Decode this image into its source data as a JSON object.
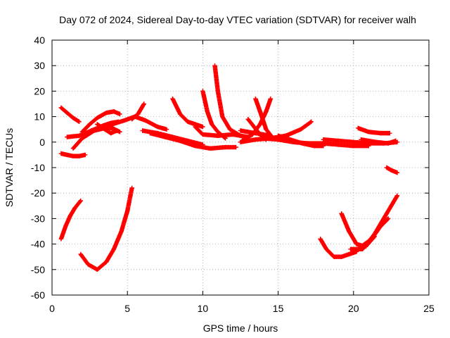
{
  "chart_data": {
    "type": "scatter",
    "title": "Day 072 of 2024, Sidereal Day-to-day VTEC variation (SDTVAR) for receiver walh",
    "xlabel": "GPS time / hours",
    "ylabel": "SDTVAR / TECUs",
    "xlim": [
      0,
      25
    ],
    "ylim": [
      -60,
      40
    ],
    "xticks": [
      0,
      5,
      10,
      15,
      20,
      25
    ],
    "yticks": [
      -60,
      -50,
      -40,
      -30,
      -20,
      -10,
      0,
      10,
      20,
      30,
      40
    ],
    "grid": true,
    "marker": "plus",
    "color": "#ff0000",
    "series": [
      {
        "x": [
          0.6,
          1.0,
          1.4,
          1.8
        ],
        "y": [
          13.5,
          11.5,
          9.5,
          8.0
        ]
      },
      {
        "x": [
          0.6,
          1.0,
          1.4,
          1.8,
          2.2
        ],
        "y": [
          -4.5,
          -5.0,
          -5.5,
          -5.5,
          -5.0
        ]
      },
      {
        "x": [
          0.6,
          0.9,
          1.2,
          1.5,
          1.9
        ],
        "y": [
          -38,
          -33,
          -29,
          -26,
          -23
        ]
      },
      {
        "x": [
          1.0,
          1.8,
          2.6,
          3.4,
          3.9,
          4.4
        ],
        "y": [
          2.0,
          2.5,
          4.5,
          6.5,
          7.5,
          8.0
        ]
      },
      {
        "x": [
          1.4,
          2.0,
          2.8,
          3.5,
          4.0,
          4.5
        ],
        "y": [
          -2.5,
          1.5,
          4.5,
          5.5,
          5.5,
          4.0
        ]
      },
      {
        "x": [
          2.0,
          2.5,
          3.0,
          3.6,
          4.1,
          4.5
        ],
        "y": [
          4.0,
          7.0,
          9.5,
          11.5,
          12.0,
          11.0
        ]
      },
      {
        "x": [
          3.0,
          3.5,
          3.9,
          4.3
        ],
        "y": [
          7.0,
          5.0,
          3.5,
          4.5
        ]
      },
      {
        "x": [
          1.9,
          2.4,
          3.0,
          3.6,
          4.1,
          4.6,
          5.0,
          5.3
        ],
        "y": [
          -44,
          -48,
          -50,
          -47,
          -42,
          -35,
          -27,
          -18
        ]
      },
      {
        "x": [
          3.2,
          4.0,
          4.8,
          5.5,
          6.2,
          7.0,
          7.6
        ],
        "y": [
          5.5,
          7.0,
          8.5,
          10.0,
          8.5,
          6.0,
          5.0
        ]
      },
      {
        "x": [
          5.3,
          5.7,
          6.1
        ],
        "y": [
          9.0,
          11.0,
          15.0
        ]
      },
      {
        "x": [
          6.0,
          7.0,
          8.0,
          9.0,
          10.0
        ],
        "y": [
          4.5,
          3.5,
          2.0,
          0.5,
          -1.0
        ]
      },
      {
        "x": [
          6.5,
          7.5,
          8.5,
          9.5,
          10.5,
          11.5,
          12.2
        ],
        "y": [
          3.5,
          2.0,
          0.5,
          -1.5,
          -2.5,
          -2.0,
          -2.0
        ]
      },
      {
        "x": [
          8.0,
          8.5,
          9.0,
          9.5,
          10.0
        ],
        "y": [
          17.0,
          11.0,
          8.0,
          7.0,
          6.0
        ]
      },
      {
        "x": [
          10.0,
          10.3,
          10.6,
          11.0,
          11.5
        ],
        "y": [
          20.0,
          12.0,
          7.0,
          4.0,
          1.5
        ]
      },
      {
        "x": [
          10.8,
          11.0,
          11.3,
          11.8,
          12.5
        ],
        "y": [
          30.0,
          20.0,
          10.0,
          5.0,
          2.5
        ]
      },
      {
        "x": [
          9.5,
          10.0,
          11.0,
          12.0,
          13.0
        ],
        "y": [
          6.0,
          3.0,
          2.5,
          3.0,
          2.0
        ]
      },
      {
        "x": [
          12.5,
          13.0,
          13.5,
          14.0,
          14.5
        ],
        "y": [
          4.5,
          4.0,
          3.5,
          3.0,
          2.5
        ]
      },
      {
        "x": [
          13.0,
          13.4,
          13.8,
          14.2
        ],
        "y": [
          9.0,
          6.0,
          3.0,
          1.0
        ]
      },
      {
        "x": [
          13.5,
          13.8,
          14.2,
          14.6
        ],
        "y": [
          17.0,
          12.0,
          5.0,
          2.0
        ]
      },
      {
        "x": [
          14.5,
          14.2,
          13.8,
          13.3,
          12.6
        ],
        "y": [
          17.0,
          12.0,
          7.0,
          3.0,
          0.5
        ]
      },
      {
        "x": [
          12.5,
          13.5,
          14.5,
          15.5,
          16.5,
          17.2
        ],
        "y": [
          0.0,
          1.0,
          1.5,
          2.5,
          5.0,
          8.0
        ]
      },
      {
        "x": [
          14.0,
          15.0,
          16.0,
          17.0,
          18.0,
          19.0,
          20.0,
          21.0
        ],
        "y": [
          1.5,
          1.0,
          0.0,
          -0.5,
          -0.5,
          -1.0,
          -1.5,
          -1.5
        ]
      },
      {
        "x": [
          15.0,
          15.8,
          16.6,
          17.4,
          18.0
        ],
        "y": [
          2.5,
          1.0,
          -0.5,
          -1.5,
          -1.5
        ]
      },
      {
        "x": [
          18.0,
          19.0,
          20.0,
          21.0,
          22.0,
          22.9
        ],
        "y": [
          1.0,
          0.5,
          0.0,
          -0.5,
          -0.5,
          0.0
        ]
      },
      {
        "x": [
          20.3,
          21.0,
          21.8,
          22.4
        ],
        "y": [
          5.5,
          4.0,
          3.5,
          3.5
        ]
      },
      {
        "x": [
          20.5,
          21.5,
          22.3,
          22.8
        ],
        "y": [
          1.0,
          0.0,
          -0.5,
          0.5
        ]
      },
      {
        "x": [
          22.2,
          22.5,
          22.9
        ],
        "y": [
          -10.0,
          -11.0,
          -12.0
        ]
      },
      {
        "x": [
          17.8,
          18.2,
          18.7,
          19.2,
          19.7,
          20.2
        ],
        "y": [
          -38,
          -42,
          -45,
          -45,
          -44,
          -43
        ]
      },
      {
        "x": [
          19.2,
          19.7,
          20.2,
          20.8,
          21.4
        ],
        "y": [
          -28,
          -35,
          -40,
          -41,
          -37
        ]
      },
      {
        "x": [
          19.8,
          20.6,
          21.4,
          22.2,
          22.9
        ],
        "y": [
          -42,
          -42,
          -36,
          -28,
          -21
        ]
      },
      {
        "x": [
          20.5,
          21.2,
          21.8,
          22.3
        ],
        "y": [
          -41,
          -38,
          -33,
          -30
        ]
      }
    ]
  }
}
